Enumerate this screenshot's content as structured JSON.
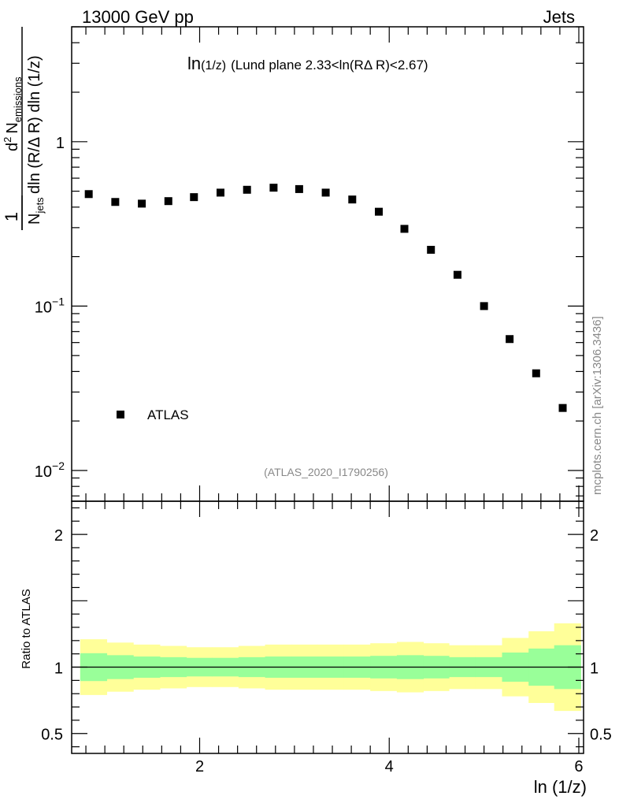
{
  "header": {
    "left": "13000 GeV pp",
    "right": "Jets"
  },
  "watermark": "mcplots.cern.ch [arXiv:1306.3436]",
  "colors": {
    "marker": "#000000",
    "band_inner": "#99ff99",
    "band_outer": "#ffff99",
    "reference_line": "#000000",
    "analysis_text": "#888888"
  },
  "chart_data": [
    {
      "type": "scatter",
      "title_main": "ln",
      "title_sub": "(1/z)",
      "title_rest": "(Lund plane 2.33<ln(RΔ R)<2.67)",
      "ylabel_num_base": "d",
      "ylabel_num_sup": "2",
      "ylabel_num_var": "N",
      "ylabel_num_sub": "emissions",
      "ylabel_den_var": "N",
      "ylabel_den_sub": "jets",
      "ylabel_den_rest": "dln (R/Δ R) dln (1/z)",
      "ylabel_frac_num": "1",
      "yscale": "log",
      "ylim": [
        0.0065,
        5.0
      ],
      "xlim": [
        0.65,
        6.05
      ],
      "y_ticks": [
        {
          "value": 1,
          "label": "1"
        },
        {
          "value": 0.1,
          "label_base": "10",
          "label_exp": "−1"
        },
        {
          "value": 0.01,
          "label_base": "10",
          "label_exp": "−2"
        }
      ],
      "legend": {
        "label": "ATLAS",
        "placement": "bottom-left"
      },
      "analysis_label": "(ATLAS_2020_I1790256)",
      "series": [
        {
          "name": "ATLAS",
          "x": [
            0.83,
            1.11,
            1.39,
            1.67,
            1.94,
            2.22,
            2.5,
            2.78,
            3.05,
            3.33,
            3.61,
            3.89,
            4.16,
            4.44,
            4.72,
            5.0,
            5.27,
            5.55,
            5.83
          ],
          "y": [
            0.48,
            0.43,
            0.42,
            0.435,
            0.46,
            0.49,
            0.51,
            0.525,
            0.515,
            0.49,
            0.445,
            0.375,
            0.295,
            0.22,
            0.155,
            0.1,
            0.063,
            0.039,
            0.024
          ]
        }
      ]
    },
    {
      "type": "area",
      "ylabel": "Ratio to ATLAS",
      "xlabel": "ln (1/z)",
      "xlim": [
        0.65,
        6.05
      ],
      "ylim": [
        0.35,
        2.25
      ],
      "x_ticks": [
        2,
        4,
        6
      ],
      "y_ticks": [
        {
          "value": 0.5,
          "label": "0.5"
        },
        {
          "value": 1,
          "label": "1"
        },
        {
          "value": 2,
          "label": "2"
        }
      ],
      "reference": 1,
      "bin_edges": [
        0.74,
        1.02,
        1.3,
        1.58,
        1.86,
        2.13,
        2.41,
        2.69,
        2.97,
        3.24,
        3.52,
        3.8,
        4.08,
        4.36,
        4.63,
        4.91,
        5.19,
        5.47,
        5.74,
        6.02
      ],
      "band_inner_low": [
        0.895,
        0.91,
        0.92,
        0.925,
        0.93,
        0.93,
        0.925,
        0.92,
        0.92,
        0.92,
        0.92,
        0.915,
        0.91,
        0.915,
        0.925,
        0.925,
        0.89,
        0.86,
        0.835
      ],
      "band_inner_high": [
        1.105,
        1.09,
        1.08,
        1.075,
        1.07,
        1.07,
        1.075,
        1.08,
        1.08,
        1.08,
        1.08,
        1.085,
        1.09,
        1.085,
        1.075,
        1.075,
        1.11,
        1.14,
        1.165
      ],
      "band_outer_low": [
        0.79,
        0.815,
        0.83,
        0.84,
        0.85,
        0.85,
        0.84,
        0.83,
        0.83,
        0.83,
        0.83,
        0.82,
        0.81,
        0.82,
        0.835,
        0.835,
        0.78,
        0.73,
        0.67
      ],
      "band_outer_high": [
        1.21,
        1.185,
        1.17,
        1.16,
        1.15,
        1.15,
        1.16,
        1.17,
        1.17,
        1.17,
        1.17,
        1.18,
        1.19,
        1.18,
        1.165,
        1.165,
        1.22,
        1.27,
        1.33
      ]
    }
  ]
}
